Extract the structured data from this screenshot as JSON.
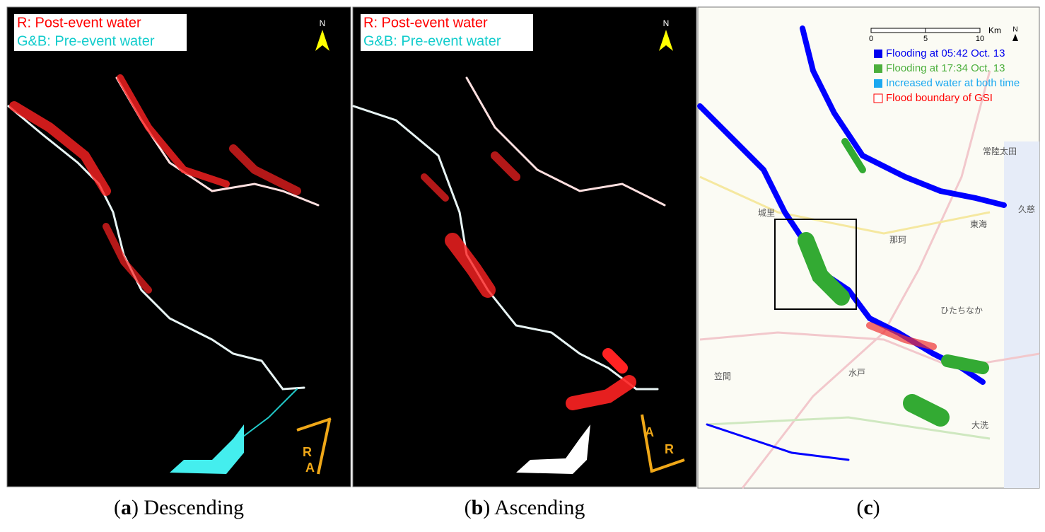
{
  "panels": [
    {
      "legend": [
        "R: Post-event water",
        "G&B: Pre-event water"
      ],
      "north": "N",
      "arrows": [
        "R",
        "A"
      ],
      "caption": [
        "(",
        "a",
        ") Descending"
      ]
    },
    {
      "legend": [
        "R: Post-event water",
        "G&B: Pre-event water"
      ],
      "north": "N",
      "arrows": [
        "A",
        "R"
      ],
      "caption": [
        "(",
        "b",
        ") Ascending"
      ]
    },
    {
      "scale": [
        "0",
        "5",
        "10",
        "Km"
      ],
      "north": "N",
      "legend": [
        "Flooding at 05:42 Oct. 13",
        "Flooding at 17:34 Oct. 13",
        "Increased water at both time",
        "Flood boundary of GSI"
      ],
      "places": [
        "常陸太田",
        "城里",
        "那珂",
        "東海",
        "ひたちなか",
        "水戸",
        "笠間",
        "大洗",
        "久慈"
      ],
      "caption": [
        "(",
        "c",
        ")"
      ]
    }
  ]
}
